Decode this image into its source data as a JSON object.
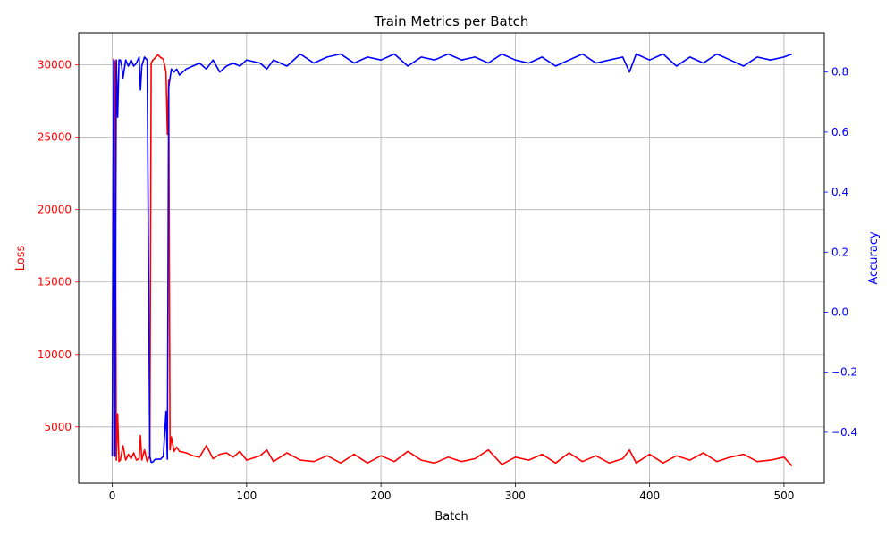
{
  "chart_data": {
    "type": "line",
    "title": "Train Metrics per Batch",
    "xlabel": "Batch",
    "ylabel_left": "Loss",
    "ylabel_right": "Accuracy",
    "grid": true,
    "xlim": [
      -25,
      530
    ],
    "ylim_left": [
      1100,
      32200
    ],
    "ylim_right": [
      -0.57,
      0.93
    ],
    "x_ticks": [
      0,
      100,
      200,
      300,
      400,
      500
    ],
    "y_ticks_left": [
      5000,
      10000,
      15000,
      20000,
      25000,
      30000
    ],
    "y_ticks_right": [
      -0.4,
      -0.2,
      0.0,
      0.2,
      0.4,
      0.6,
      0.8
    ],
    "series": [
      {
        "name": "Loss",
        "axis": "left",
        "color": "#ff0000",
        "x": [
          0,
          1,
          2,
          3,
          4,
          5,
          6,
          8,
          10,
          12,
          14,
          16,
          18,
          20,
          21,
          22,
          24,
          26,
          28,
          29,
          30,
          32,
          34,
          36,
          38,
          40,
          41,
          42,
          43,
          44,
          46,
          48,
          50,
          55,
          60,
          65,
          70,
          75,
          80,
          85,
          90,
          95,
          100,
          110,
          115,
          120,
          130,
          140,
          150,
          160,
          170,
          180,
          190,
          200,
          210,
          220,
          230,
          240,
          250,
          260,
          270,
          280,
          290,
          300,
          310,
          320,
          330,
          340,
          350,
          360,
          370,
          380,
          385,
          390,
          400,
          410,
          420,
          430,
          440,
          450,
          460,
          470,
          480,
          490,
          500,
          506
        ],
        "values": [
          3000,
          30400,
          30200,
          2700,
          5900,
          2600,
          2700,
          3700,
          2700,
          3100,
          2800,
          3200,
          2700,
          2800,
          4400,
          2700,
          3400,
          2600,
          3000,
          30100,
          30300,
          30500,
          30700,
          30500,
          30400,
          29500,
          25200,
          29000,
          3400,
          4300,
          3300,
          3600,
          3300,
          3200,
          3000,
          2900,
          3700,
          2800,
          3100,
          3200,
          2900,
          3300,
          2700,
          3000,
          3400,
          2600,
          3200,
          2700,
          2600,
          3000,
          2500,
          3100,
          2500,
          3000,
          2600,
          3300,
          2700,
          2500,
          2900,
          2600,
          2800,
          3400,
          2400,
          2900,
          2700,
          3100,
          2500,
          3200,
          2600,
          3000,
          2500,
          2800,
          3400,
          2500,
          3100,
          2500,
          3000,
          2700,
          3200,
          2600,
          2900,
          3100,
          2600,
          2700,
          2900,
          2300
        ]
      },
      {
        "name": "Accuracy",
        "axis": "right",
        "color": "#0000ff",
        "x": [
          0,
          1,
          2,
          3,
          4,
          5,
          6,
          7,
          8,
          10,
          12,
          14,
          16,
          18,
          20,
          21,
          22,
          24,
          26,
          28,
          29,
          30,
          32,
          34,
          36,
          38,
          40,
          41,
          42,
          43,
          44,
          46,
          48,
          50,
          55,
          60,
          65,
          70,
          75,
          80,
          85,
          90,
          95,
          100,
          110,
          115,
          120,
          130,
          140,
          150,
          160,
          170,
          180,
          190,
          200,
          210,
          220,
          230,
          240,
          250,
          260,
          270,
          280,
          290,
          300,
          310,
          320,
          330,
          340,
          350,
          360,
          370,
          380,
          385,
          390,
          400,
          410,
          420,
          430,
          440,
          450,
          460,
          470,
          480,
          490,
          500,
          506
        ],
        "values": [
          -0.48,
          0.84,
          -0.48,
          0.84,
          0.65,
          0.84,
          0.84,
          0.82,
          0.78,
          0.84,
          0.82,
          0.84,
          0.82,
          0.83,
          0.85,
          0.74,
          0.82,
          0.85,
          0.84,
          -0.48,
          -0.5,
          -0.5,
          -0.49,
          -0.49,
          -0.49,
          -0.48,
          -0.33,
          -0.49,
          0.75,
          0.78,
          0.81,
          0.8,
          0.81,
          0.79,
          0.81,
          0.82,
          0.83,
          0.81,
          0.84,
          0.8,
          0.82,
          0.83,
          0.82,
          0.84,
          0.83,
          0.81,
          0.84,
          0.82,
          0.86,
          0.83,
          0.85,
          0.86,
          0.83,
          0.85,
          0.84,
          0.86,
          0.82,
          0.85,
          0.84,
          0.86,
          0.84,
          0.85,
          0.83,
          0.86,
          0.84,
          0.83,
          0.85,
          0.82,
          0.84,
          0.86,
          0.83,
          0.84,
          0.85,
          0.8,
          0.86,
          0.84,
          0.86,
          0.82,
          0.85,
          0.83,
          0.86,
          0.84,
          0.82,
          0.85,
          0.84,
          0.85,
          0.86
        ]
      }
    ]
  }
}
